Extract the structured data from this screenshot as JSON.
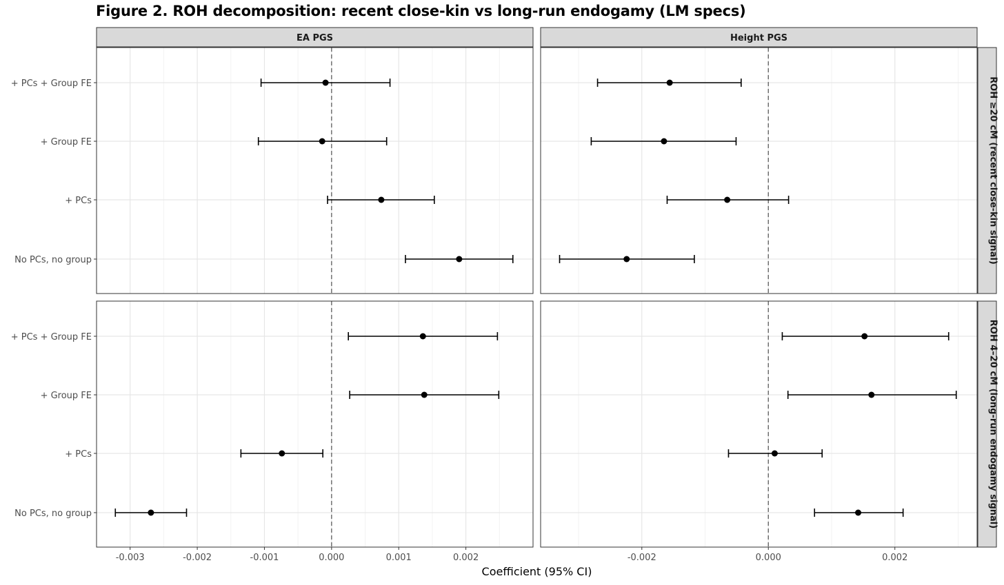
{
  "title": "Figure 2. ROH decomposition: recent close-kin vs long-run endogamy (LM specs)",
  "chart_data": {
    "type": "forest",
    "xlabel": "Coefficient (95% CI)",
    "ylabel": "",
    "categories": [
      "+ PCs + Group FE",
      "+ Group FE",
      "+ PCs",
      "No PCs, no group"
    ],
    "columns": [
      "EA PGS",
      "Height PGS"
    ],
    "rows": [
      "ROH ≥20 cM (recent close-kin signal)",
      "ROH 4–20 cM (long-run endogamy signal)"
    ],
    "reference_line": 0,
    "grid": true,
    "panels": [
      {
        "column": "EA PGS",
        "row": "ROH ≥20 cM (recent close-kin signal)",
        "xlim": [
          -0.0035,
          0.003
        ],
        "xticks": [
          -0.003,
          -0.002,
          -0.001,
          0.0,
          0.001,
          0.002
        ],
        "xtick_labels": [
          "-0.003",
          "-0.002",
          "-0.001",
          "0.000",
          "0.001",
          "0.002"
        ],
        "estimates": [
          {
            "category": "+ PCs + Group FE",
            "value": -9e-05,
            "low": -0.00105,
            "high": 0.00087
          },
          {
            "category": "+ Group FE",
            "value": -0.00014,
            "low": -0.00109,
            "high": 0.00082
          },
          {
            "category": "+ PCs",
            "value": 0.00074,
            "low": -6e-05,
            "high": 0.00153
          },
          {
            "category": "No PCs, no group",
            "value": 0.0019,
            "low": 0.0011,
            "high": 0.0027
          }
        ]
      },
      {
        "column": "Height PGS",
        "row": "ROH ≥20 cM (recent close-kin signal)",
        "xlim": [
          -0.0036,
          0.0033
        ],
        "xticks": [
          -0.002,
          0.0,
          0.002
        ],
        "xtick_labels": [
          "-0.002",
          "0.000",
          "0.002"
        ],
        "estimates": [
          {
            "category": "+ PCs + Group FE",
            "value": -0.00156,
            "low": -0.0027,
            "high": -0.00043
          },
          {
            "category": "+ Group FE",
            "value": -0.00165,
            "low": -0.0028,
            "high": -0.00051
          },
          {
            "category": "+ PCs",
            "value": -0.00065,
            "low": -0.0016,
            "high": 0.00032
          },
          {
            "category": "No PCs, no group",
            "value": -0.00224,
            "low": -0.0033,
            "high": -0.00117
          }
        ]
      },
      {
        "column": "EA PGS",
        "row": "ROH 4–20 cM (long-run endogamy signal)",
        "xlim": [
          -0.0035,
          0.003
        ],
        "xticks": [
          -0.003,
          -0.002,
          -0.001,
          0.0,
          0.001,
          0.002
        ],
        "xtick_labels": [
          "-0.003",
          "-0.002",
          "-0.001",
          "0.000",
          "0.001",
          "0.002"
        ],
        "estimates": [
          {
            "category": "+ PCs + Group FE",
            "value": 0.00136,
            "low": 0.00025,
            "high": 0.00247
          },
          {
            "category": "+ Group FE",
            "value": 0.00138,
            "low": 0.00027,
            "high": 0.00249
          },
          {
            "category": "+ PCs",
            "value": -0.00074,
            "low": -0.00135,
            "high": -0.00013
          },
          {
            "category": "No PCs, no group",
            "value": -0.00269,
            "low": -0.00322,
            "high": -0.00216
          }
        ]
      },
      {
        "column": "Height PGS",
        "row": "ROH 4–20 cM (long-run endogamy signal)",
        "xlim": [
          -0.0036,
          0.0033
        ],
        "xticks": [
          -0.002,
          0.0,
          0.002
        ],
        "xtick_labels": [
          "-0.002",
          "0.000",
          "0.002"
        ],
        "estimates": [
          {
            "category": "+ PCs + Group FE",
            "value": 0.00152,
            "low": 0.00022,
            "high": 0.00285
          },
          {
            "category": "+ Group FE",
            "value": 0.00163,
            "low": 0.00031,
            "high": 0.00297
          },
          {
            "category": "+ PCs",
            "value": 0.0001,
            "low": -0.00063,
            "high": 0.00085
          },
          {
            "category": "No PCs, no group",
            "value": 0.00142,
            "low": 0.00073,
            "high": 0.00213
          }
        ]
      }
    ]
  }
}
